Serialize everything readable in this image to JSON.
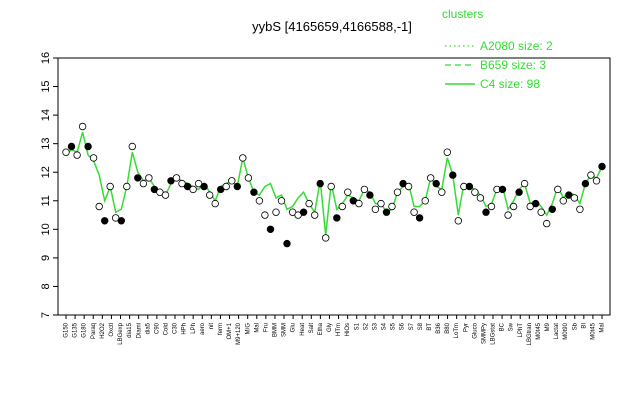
{
  "chart_data": {
    "type": "line",
    "title": "yybS [4165659,4166588,-1]",
    "xlabel": "",
    "ylabel": "",
    "ylim": [
      7,
      16
    ],
    "yticks": [
      7,
      8,
      9,
      10,
      11,
      12,
      13,
      14,
      15,
      16
    ],
    "grid": false,
    "legend": {
      "title": "clusters",
      "placement": "top-right",
      "entries": [
        {
          "label": "A2080 size: 2",
          "style": "dotted"
        },
        {
          "label": "B659 size: 3",
          "style": "dashed"
        },
        {
          "label": "C4 size: 98",
          "style": "solid"
        }
      ]
    },
    "line_color": "#33dd33",
    "x_tick_labels": [
      "G150",
      "G135",
      "G180",
      "Paraq",
      "H2O2",
      "Oxctl",
      "LBGexp",
      "dia15",
      "Diami",
      "dia5",
      "C90",
      "Cold",
      "C30",
      "HPh",
      "LPh",
      "aero",
      "nit",
      "ferm",
      "OM+1",
      "M9+120",
      "M/G",
      "Mal",
      "Fru",
      "BMM",
      "SMM",
      "Glu",
      "Heat",
      "Salt",
      "Etha",
      "Gly",
      "HTm",
      "HiOs",
      "S1",
      "S2",
      "S3",
      "S4",
      "S5",
      "S6",
      "S7",
      "S8",
      "BT",
      "B36",
      "B80",
      "LoTm",
      "Pyr",
      "Gluco",
      "SMMPy",
      "LBGstat",
      "BC",
      "Sw",
      "LPhT",
      "LBGtran",
      "M0t45",
      "M9",
      "Lactat",
      "M0t90",
      "Sb",
      "BI",
      "M0t45",
      "Mal"
    ],
    "series": [
      {
        "name": "C4 size: 98",
        "values": [
          12.6,
          12.8,
          12.7,
          13.4,
          12.6,
          12.4,
          11.9,
          11.0,
          11.5,
          10.6,
          10.7,
          11.5,
          12.7,
          12.0,
          11.7,
          11.8,
          11.5,
          11.3,
          11.2,
          11.6,
          11.8,
          11.7,
          11.6,
          11.5,
          11.4,
          11.6,
          11.3,
          11.0,
          11.5,
          11.6,
          11.7,
          11.5,
          12.5,
          11.8,
          11.3,
          11.2,
          11.5,
          11.6,
          11.1,
          11.2,
          10.7,
          10.8,
          11.1,
          11.3,
          10.9,
          10.6,
          11.7,
          9.8,
          11.6,
          10.7,
          10.9,
          11.2,
          11.1,
          11.0,
          11.4,
          11.3,
          10.9,
          10.9,
          10.6,
          10.7,
          11.3,
          11.5,
          11.6,
          10.8,
          10.8,
          11.0,
          11.8,
          11.5,
          11.4,
          12.5,
          11.9,
          10.5,
          11.6,
          11.5,
          11.4,
          11.2,
          10.8,
          10.9,
          11.4,
          11.5,
          10.7,
          11.0,
          11.4,
          11.6,
          10.9,
          11.0,
          10.8,
          10.5,
          10.9,
          11.5,
          11.1,
          11.3,
          11.2,
          10.9,
          11.6,
          11.9,
          11.8,
          12.2
        ],
        "points": [
          12.7,
          12.9,
          12.6,
          13.6,
          12.9,
          12.5,
          10.8,
          10.3,
          11.5,
          10.4,
          10.3,
          11.5,
          12.9,
          11.8,
          11.6,
          11.8,
          11.4,
          11.3,
          11.2,
          11.7,
          11.8,
          11.6,
          11.5,
          11.4,
          11.6,
          11.5,
          11.2,
          10.9,
          11.4,
          11.5,
          11.7,
          11.5,
          12.5,
          11.8,
          11.3,
          11.0,
          10.5,
          10.0,
          10.6,
          11.0,
          9.5,
          10.6,
          10.5,
          10.6,
          10.9,
          10.5,
          11.6,
          9.7,
          11.5,
          10.4,
          10.8,
          11.3,
          11.0,
          10.9,
          11.4,
          11.2,
          10.7,
          10.9,
          10.6,
          10.8,
          11.3,
          11.6,
          11.5,
          10.6,
          10.4,
          11.0,
          11.8,
          11.6,
          11.3,
          12.7,
          11.9,
          10.3,
          11.5,
          11.5,
          11.3,
          11.1,
          10.6,
          10.8,
          11.4,
          11.4,
          10.5,
          10.8,
          11.3,
          11.6,
          10.8,
          10.9,
          10.6,
          10.2,
          10.7,
          11.4,
          11.0,
          11.2,
          11.1,
          10.7,
          11.6,
          11.9,
          11.7,
          12.2
        ]
      }
    ]
  }
}
